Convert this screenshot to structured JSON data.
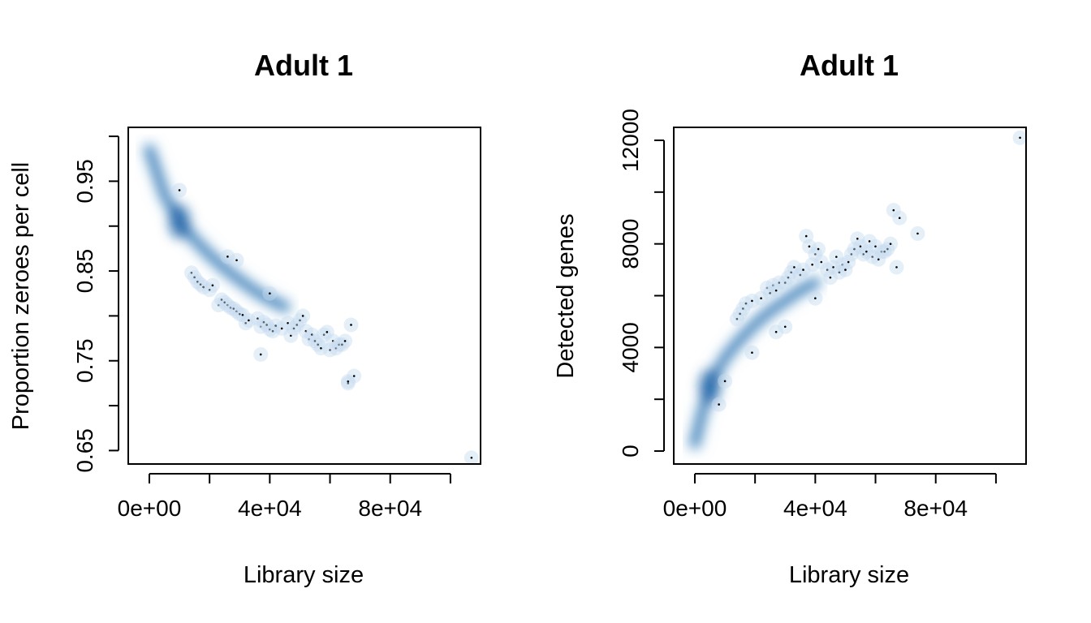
{
  "chart_data": [
    {
      "type": "scatter",
      "subtype": "smooth-scatter density",
      "title": "Adult 1",
      "xlabel": "Library size",
      "ylabel": "Proportion zeroes per cell",
      "xlim": [
        -7000,
        110000
      ],
      "ylim": [
        0.635,
        1.01
      ],
      "xticks": [
        0,
        20000,
        40000,
        60000,
        80000,
        100000
      ],
      "xtick_labels": [
        "0e+00",
        "",
        "4e+04",
        "",
        "8e+04",
        ""
      ],
      "yticks": [
        0.65,
        0.7,
        0.75,
        0.8,
        0.85,
        0.9,
        0.95,
        1.0
      ],
      "ytick_labels": [
        "0.65",
        "",
        "0.75",
        "",
        "0.85",
        "",
        "0.95",
        ""
      ],
      "density_color": "#08519c",
      "point_color": "#000000",
      "density_trend": {
        "x": [
          0,
          2000,
          5000,
          10000,
          15000,
          20000,
          25000,
          30000,
          35000,
          40000,
          45000
        ],
        "y": [
          0.985,
          0.965,
          0.935,
          0.905,
          0.885,
          0.868,
          0.853,
          0.84,
          0.828,
          0.818,
          0.81
        ]
      },
      "outlier_points": {
        "x": [
          14000,
          15000,
          16000,
          17000,
          18000,
          20000,
          21000,
          23000,
          24000,
          25000,
          26000,
          27000,
          28000,
          29000,
          30000,
          31000,
          32000,
          33000,
          36000,
          37000,
          38000,
          39000,
          40000,
          41000,
          42000,
          44000,
          46000,
          47000,
          48000,
          49000,
          50000,
          51000,
          52000,
          53000,
          54000,
          55000,
          56000,
          57000,
          58000,
          59000,
          60000,
          61000,
          62000,
          63000,
          64000,
          65000,
          66000,
          67000,
          10000,
          26000,
          29000,
          40000,
          37000,
          66000,
          68000,
          107000
        ],
        "y": [
          0.848,
          0.843,
          0.838,
          0.835,
          0.832,
          0.829,
          0.834,
          0.812,
          0.818,
          0.815,
          0.812,
          0.809,
          0.808,
          0.805,
          0.802,
          0.801,
          0.792,
          0.795,
          0.797,
          0.788,
          0.793,
          0.79,
          0.785,
          0.783,
          0.789,
          0.786,
          0.792,
          0.778,
          0.786,
          0.79,
          0.795,
          0.8,
          0.783,
          0.774,
          0.779,
          0.772,
          0.768,
          0.764,
          0.779,
          0.782,
          0.762,
          0.772,
          0.764,
          0.768,
          0.768,
          0.772,
          0.725,
          0.79,
          0.94,
          0.866,
          0.862,
          0.825,
          0.757,
          0.727,
          0.733,
          0.642
        ]
      }
    },
    {
      "type": "scatter",
      "subtype": "smooth-scatter density",
      "title": "Adult 1",
      "xlabel": "Library size",
      "ylabel": "Detected genes",
      "xlim": [
        -7000,
        110000
      ],
      "ylim": [
        -500,
        12500
      ],
      "xticks": [
        0,
        20000,
        40000,
        60000,
        80000,
        100000
      ],
      "xtick_labels": [
        "0e+00",
        "",
        "4e+04",
        "",
        "8e+04",
        ""
      ],
      "yticks": [
        0,
        2000,
        4000,
        6000,
        8000,
        10000,
        12000
      ],
      "ytick_labels": [
        "0",
        "",
        "4000",
        "",
        "8000",
        "",
        "12000"
      ],
      "density_color": "#08519c",
      "point_color": "#000000",
      "density_trend": {
        "x": [
          0,
          1000,
          2500,
          5000,
          8000,
          10000,
          15000,
          20000,
          25000,
          30000,
          35000,
          40000
        ],
        "y": [
          300,
          800,
          1500,
          2500,
          3200,
          3600,
          4300,
          4900,
          5400,
          5800,
          6200,
          6500
        ]
      },
      "outlier_points": {
        "x": [
          14000,
          15000,
          16000,
          17000,
          19000,
          22000,
          24000,
          25000,
          26000,
          27000,
          28000,
          30000,
          31000,
          32000,
          33000,
          35000,
          36000,
          37000,
          38000,
          39000,
          40000,
          41000,
          42000,
          44000,
          45000,
          46000,
          47000,
          48000,
          49000,
          50000,
          51000,
          52000,
          53000,
          54000,
          55000,
          56000,
          57000,
          58000,
          59000,
          60000,
          61000,
          62000,
          63000,
          64000,
          65000,
          66000,
          67000,
          68000,
          74000,
          108000,
          10000,
          8000,
          27000,
          30000,
          40000,
          19000
        ],
        "y": [
          5100,
          5300,
          5500,
          5700,
          5800,
          5900,
          6300,
          6100,
          6400,
          6200,
          6500,
          6500,
          6700,
          6900,
          7100,
          6800,
          7000,
          8300,
          7900,
          7200,
          7600,
          7800,
          7300,
          7000,
          6700,
          7100,
          7500,
          6900,
          7200,
          7000,
          7300,
          7600,
          7800,
          8200,
          7900,
          7600,
          7700,
          8100,
          7500,
          7900,
          7400,
          7700,
          7700,
          7800,
          8000,
          9300,
          7100,
          9000,
          8400,
          12100,
          2700,
          1800,
          4600,
          4800,
          5900,
          3800
        ]
      }
    }
  ]
}
